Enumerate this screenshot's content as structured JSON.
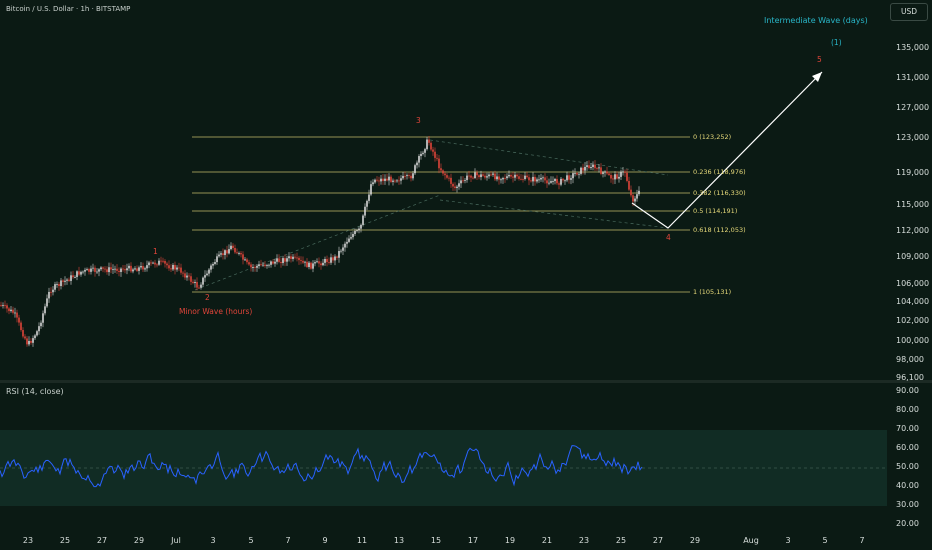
{
  "header": {
    "symbol_title": "Bitcoin / U.S. Dollar · 1h · BITSTAMP",
    "currency": "USD",
    "intermediate_wave_title": "Intermediate Wave (days)"
  },
  "price_axis": {
    "ticks": [
      "135,000",
      "131,000",
      "127,000",
      "123,000",
      "119,000",
      "115,000",
      "112,000",
      "109,000",
      "106,000",
      "104,000",
      "102,000",
      "100,000",
      "98,000",
      "96,100"
    ]
  },
  "rsi": {
    "label": "RSI (14, close)",
    "ticks": [
      "90.00",
      "80.00",
      "70.00",
      "60.00",
      "50.00",
      "40.00",
      "30.00",
      "20.00"
    ]
  },
  "time_axis": {
    "ticks": [
      "23",
      "25",
      "27",
      "29",
      "Jul",
      "3",
      "5",
      "7",
      "9",
      "11",
      "13",
      "15",
      "17",
      "19",
      "21",
      "23",
      "25",
      "27",
      "29",
      "Aug",
      "3",
      "5",
      "7"
    ]
  },
  "fibonacci": [
    {
      "label": "0 (123,252)"
    },
    {
      "label": "0.236 (118,976)"
    },
    {
      "label": "0.382 (116,330)"
    },
    {
      "label": "0.5 (114,191)"
    },
    {
      "label": "0.618 (112,053)"
    },
    {
      "label": "1 (105,131)"
    }
  ],
  "waves": {
    "w1": "1",
    "w2": "2",
    "w3": "3",
    "w4": "4",
    "w5": "5",
    "intermediate": "(1)",
    "minor": "Minor Wave (hours)"
  },
  "colors": {
    "background": "#0b1a14",
    "candle_up": "#d9d9d9",
    "candle_down": "#e0453a",
    "fib_line": "#e6d97a",
    "rsi_line": "#2962ff",
    "wave_red": "#e0453a",
    "wave_teal": "#29b6c8"
  }
}
